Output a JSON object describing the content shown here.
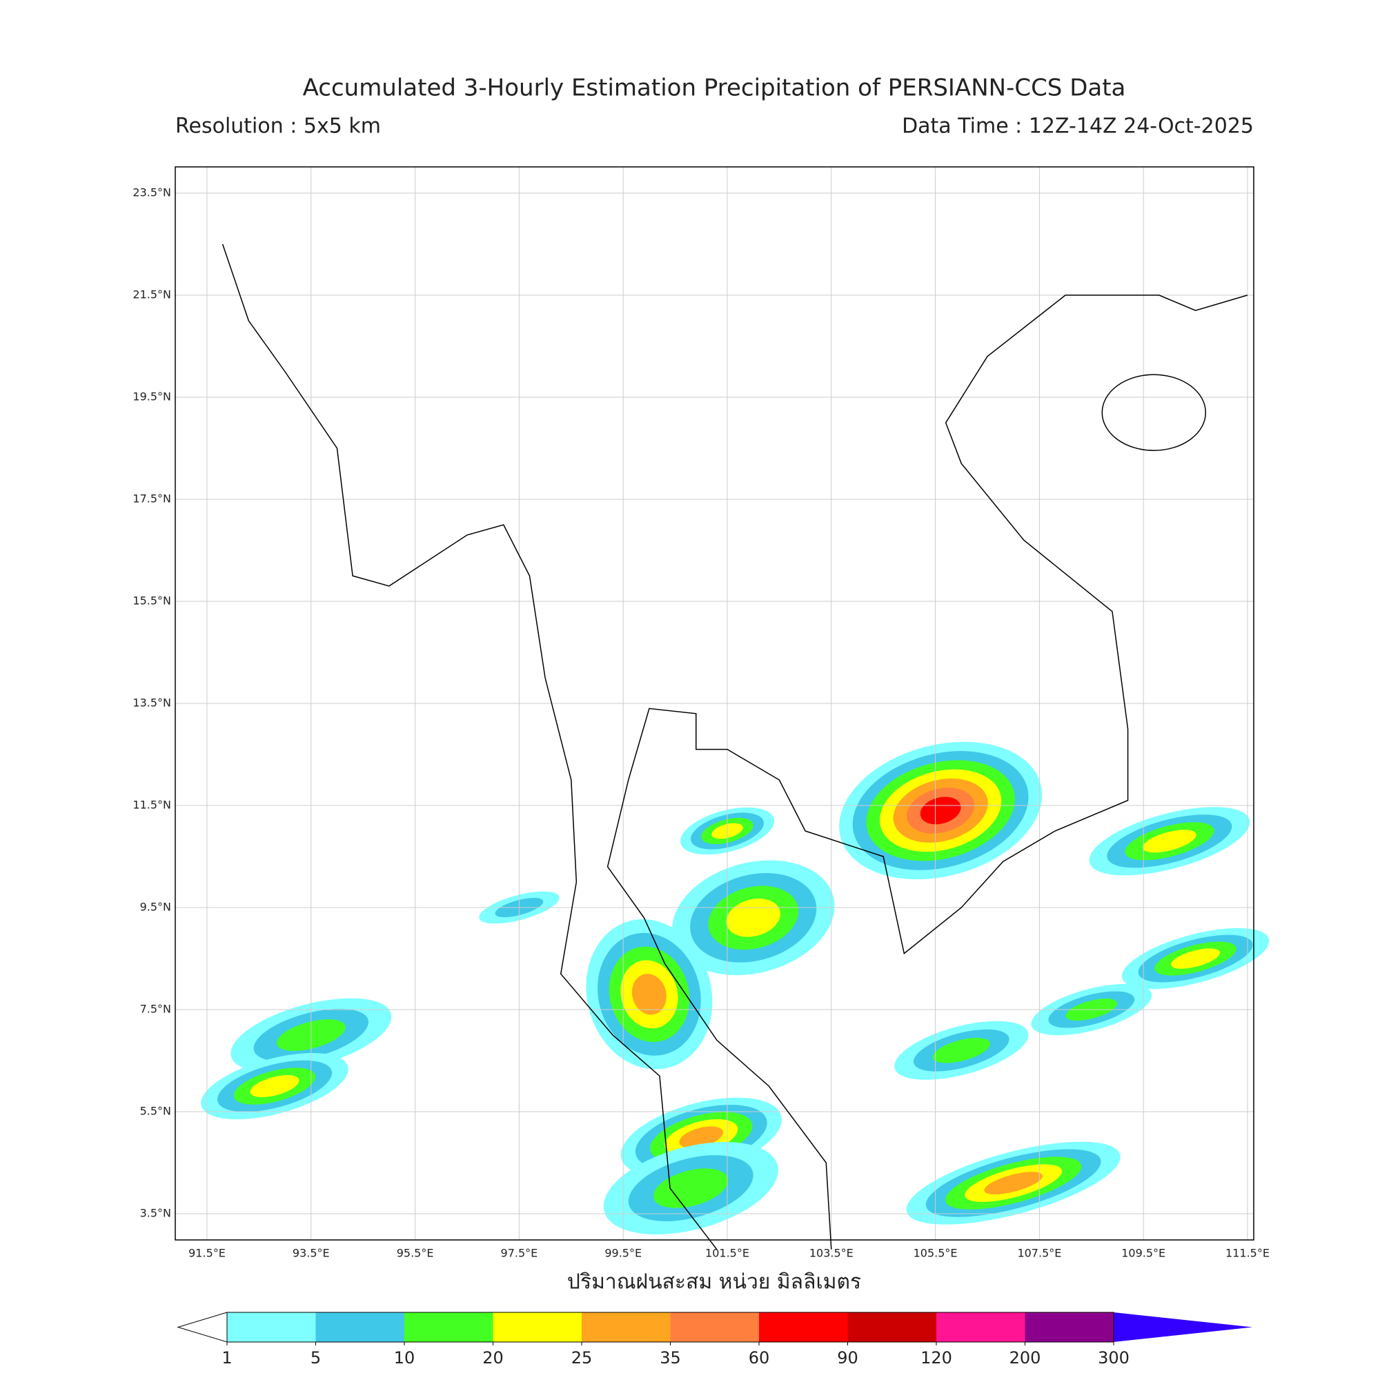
{
  "header": {
    "title": "Accumulated 3-Hourly Estimation Precipitation of PERSIANN-CCS Data",
    "resolution": "Resolution : 5x5 km",
    "data_time": "Data Time : 12Z-14Z 24-Oct-2025"
  },
  "map": {
    "latitude_ticks": [
      {
        "value": 23.5,
        "label": "23.5°N"
      },
      {
        "value": 21.5,
        "label": "21.5°N"
      },
      {
        "value": 19.5,
        "label": "19.5°N"
      },
      {
        "value": 17.5,
        "label": "17.5°N"
      },
      {
        "value": 15.5,
        "label": "15.5°N"
      },
      {
        "value": 13.5,
        "label": "13.5°N"
      },
      {
        "value": 11.5,
        "label": "11.5°N"
      },
      {
        "value": 9.5,
        "label": "9.5°N"
      },
      {
        "value": 7.5,
        "label": "7.5°N"
      },
      {
        "value": 5.5,
        "label": "5.5°N"
      },
      {
        "value": 3.5,
        "label": "3.5°N"
      }
    ],
    "longitude_ticks": [
      {
        "value": 91.5,
        "label": "91.5°E"
      },
      {
        "value": 93.5,
        "label": "93.5°E"
      },
      {
        "value": 95.5,
        "label": "95.5°E"
      },
      {
        "value": 97.5,
        "label": "97.5°E"
      },
      {
        "value": 99.5,
        "label": "99.5°E"
      },
      {
        "value": 101.5,
        "label": "101.5°E"
      },
      {
        "value": 103.5,
        "label": "103.5°E"
      },
      {
        "value": 105.5,
        "label": "105.5°E"
      },
      {
        "value": 107.5,
        "label": "107.5°E"
      },
      {
        "value": 109.5,
        "label": "109.5°E"
      },
      {
        "value": 111.5,
        "label": "111.5°E"
      }
    ],
    "x_label": "ปริมาณฝนสะสม หน่วย มิลลิเมตร"
  },
  "colorbar": {
    "ticks": [
      1,
      5,
      10,
      20,
      25,
      35,
      60,
      90,
      120,
      200,
      300
    ],
    "colors": [
      "#7fffff",
      "#40c8e8",
      "#44ff22",
      "#ffff00",
      "#ffa51f",
      "#ff7f3f",
      "#ff0000",
      "#cc0000",
      "#ff1493",
      "#8b008b"
    ],
    "under_color": "#ffffff",
    "over_color": "#3300ff"
  }
}
